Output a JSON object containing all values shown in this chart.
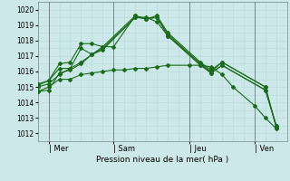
{
  "xlabel": "Pression niveau de la mer( hPa )",
  "bg_color": "#cce8e8",
  "grid_color": "#aacccc",
  "line_color": "#1a6b1a",
  "ylim": [
    1011.5,
    1020.5
  ],
  "yticks": [
    1012,
    1013,
    1014,
    1015,
    1016,
    1017,
    1018,
    1019,
    1020
  ],
  "day_labels": [
    "| Mer",
    "| Sam",
    "| Jeu",
    "| Ven"
  ],
  "day_positions": [
    0.5,
    3.5,
    7.0,
    10.0
  ],
  "vline_positions": [
    0.5,
    3.5,
    7.0,
    10.0
  ],
  "xlim": [
    0,
    11.5
  ],
  "lines": [
    {
      "x": [
        0.0,
        0.5,
        1.0,
        1.5,
        2.0,
        2.5,
        3.0,
        4.5,
        5.0,
        5.5,
        6.0,
        7.5,
        8.0,
        8.5,
        10.5,
        11.0
      ],
      "y": [
        1014.7,
        1014.8,
        1015.9,
        1016.1,
        1016.5,
        1017.1,
        1017.4,
        1019.5,
        1019.5,
        1019.2,
        1018.3,
        1016.4,
        1015.9,
        1016.4,
        1014.8,
        1012.5
      ]
    },
    {
      "x": [
        0.0,
        0.5,
        1.0,
        1.5,
        2.0,
        2.5,
        3.0,
        4.5,
        5.0,
        5.5,
        6.0,
        7.5,
        8.0,
        8.5,
        10.5,
        11.0
      ],
      "y": [
        1015.0,
        1015.2,
        1015.8,
        1016.2,
        1016.6,
        1017.1,
        1017.5,
        1019.5,
        1019.4,
        1019.5,
        1018.3,
        1016.5,
        1015.9,
        1016.4,
        1014.8,
        1012.5
      ]
    },
    {
      "x": [
        0.0,
        0.5,
        1.0,
        1.5,
        2.0,
        2.5,
        3.0,
        4.5,
        5.0,
        5.5,
        6.0,
        7.5,
        8.0,
        8.5,
        10.5,
        11.0
      ],
      "y": [
        1015.1,
        1015.4,
        1016.2,
        1016.2,
        1017.5,
        1017.1,
        1017.6,
        1019.6,
        1019.4,
        1019.5,
        1018.4,
        1016.5,
        1016.0,
        1016.6,
        1015.0,
        1012.4
      ]
    },
    {
      "x": [
        0.0,
        0.5,
        1.0,
        1.5,
        2.0,
        2.5,
        3.0,
        3.5,
        4.5,
        5.0,
        5.5,
        6.0,
        7.5,
        8.0,
        8.5,
        10.5,
        11.0
      ],
      "y": [
        1015.2,
        1015.4,
        1016.5,
        1016.6,
        1017.8,
        1017.8,
        1017.6,
        1017.6,
        1019.6,
        1019.4,
        1019.6,
        1018.5,
        1016.6,
        1016.1,
        1016.6,
        1015.0,
        1012.4
      ]
    },
    {
      "x": [
        0.0,
        0.5,
        1.0,
        1.5,
        2.0,
        2.5,
        3.0,
        3.5,
        4.0,
        4.5,
        5.0,
        5.5,
        6.0,
        7.0,
        7.5,
        8.0,
        8.5,
        9.0,
        10.0,
        10.5,
        11.0
      ],
      "y": [
        1014.7,
        1015.0,
        1015.5,
        1015.5,
        1015.8,
        1015.9,
        1016.0,
        1016.1,
        1016.1,
        1016.2,
        1016.2,
        1016.3,
        1016.4,
        1016.4,
        1016.4,
        1016.3,
        1015.8,
        1015.0,
        1013.8,
        1013.0,
        1012.3
      ]
    }
  ]
}
